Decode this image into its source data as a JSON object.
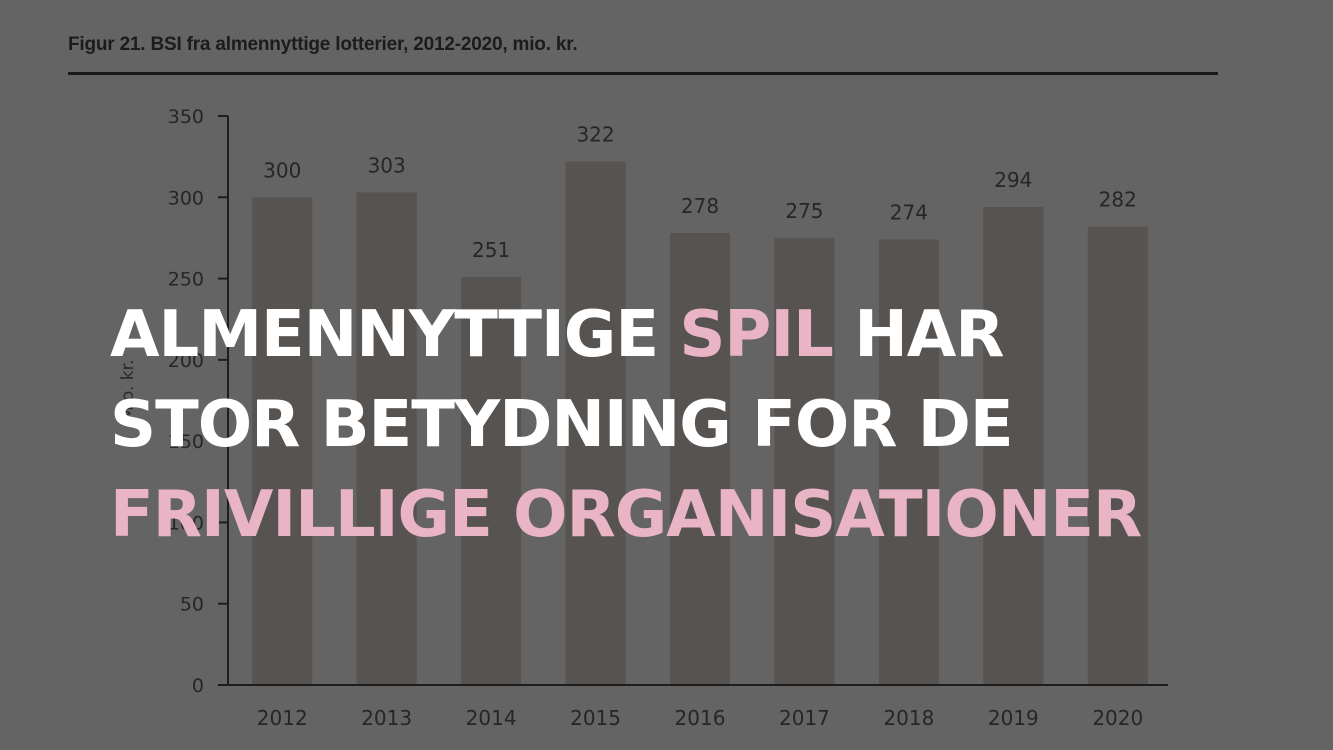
{
  "figure": {
    "title": "Figur 21. BSI fra almennyttige lotterier, 2012-2020, mio. kr."
  },
  "chart_data": {
    "type": "bar",
    "title": "Figur 21. BSI fra almennyttige lotterier, 2012-2020, mio. kr.",
    "categories": [
      "2012",
      "2013",
      "2014",
      "2015",
      "2016",
      "2017",
      "2018",
      "2019",
      "2020"
    ],
    "values": [
      300,
      303,
      251,
      322,
      278,
      275,
      274,
      294,
      282
    ],
    "data_labels": [
      "300",
      "303",
      "251",
      "322",
      "278",
      "275",
      "274",
      "294",
      "282"
    ],
    "ylabel": "Mio. kr.",
    "xlabel": "",
    "ylim": [
      0,
      350
    ],
    "yticks": [
      0,
      50,
      100,
      150,
      200,
      250,
      300,
      350
    ],
    "ytick_labels": [
      "0",
      "50",
      "100",
      "150",
      "200",
      "250",
      "300",
      "350"
    ],
    "grid": false,
    "legend": "none",
    "colors": {
      "bar": "#575350",
      "axis": "#1e1e1e",
      "text": "#262626",
      "background": "#646464"
    }
  },
  "headline": {
    "line1_a": "ALMENNYTTIGE ",
    "line1_accent": "SPIL",
    "line1_b": " HAR",
    "line2": "STOR BETYDNING FOR DE",
    "line3_accent": "FRIVILLIGE ORGANISATIONER",
    "colors": {
      "text": "#ffffff",
      "accent": "#e8b4c6"
    }
  }
}
